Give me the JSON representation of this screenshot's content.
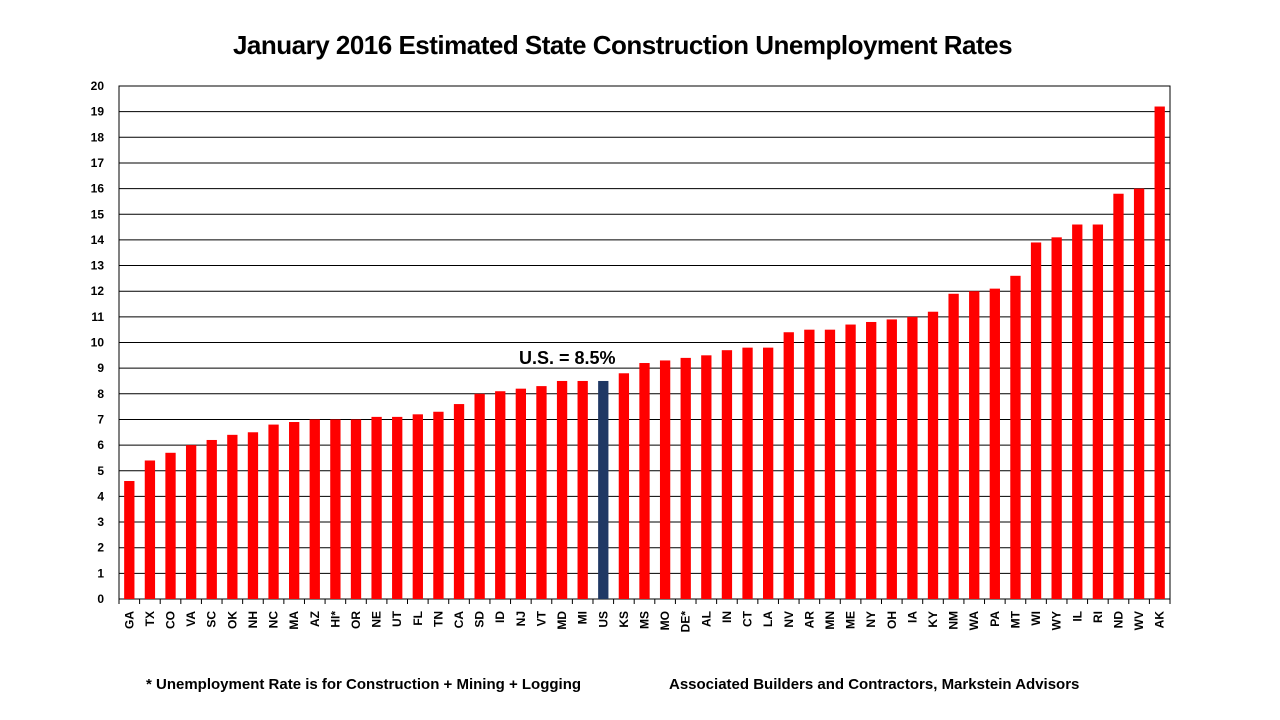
{
  "chart_data": {
    "type": "bar",
    "title": "January 2016 Estimated State Construction Unemployment Rates",
    "xlabel": "",
    "ylabel": "",
    "ylim": [
      0,
      20
    ],
    "yticks": [
      0,
      1,
      2,
      3,
      4,
      5,
      6,
      7,
      8,
      9,
      10,
      11,
      12,
      13,
      14,
      15,
      16,
      17,
      18,
      19,
      20
    ],
    "grid": true,
    "categories": [
      "GA",
      "TX",
      "CO",
      "VA",
      "SC",
      "OK",
      "NH",
      "NC",
      "MA",
      "AZ",
      "HI*",
      "OR",
      "NE",
      "UT",
      "FL",
      "TN",
      "CA",
      "SD",
      "ID",
      "NJ",
      "VT",
      "MD",
      "MI",
      "US",
      "KS",
      "MS",
      "MO",
      "DE*",
      "AL",
      "IN",
      "CT",
      "LA",
      "NV",
      "AR",
      "MN",
      "ME",
      "NY",
      "OH",
      "IA",
      "KY",
      "NM",
      "WA",
      "PA",
      "MT",
      "WI",
      "WY",
      "IL",
      "RI",
      "ND",
      "WV",
      "AK"
    ],
    "values": [
      4.6,
      5.4,
      5.7,
      6.0,
      6.2,
      6.4,
      6.5,
      6.8,
      6.9,
      7.0,
      7.0,
      7.0,
      7.1,
      7.1,
      7.2,
      7.3,
      7.6,
      8.0,
      8.1,
      8.2,
      8.3,
      8.5,
      8.5,
      8.5,
      8.8,
      9.2,
      9.3,
      9.4,
      9.5,
      9.7,
      9.8,
      9.8,
      10.4,
      10.5,
      10.5,
      10.7,
      10.8,
      10.9,
      11.0,
      11.2,
      11.9,
      12.0,
      12.1,
      12.6,
      13.9,
      14.1,
      14.6,
      14.6,
      15.8,
      16.0,
      19.2
    ],
    "highlight_category": "US",
    "colors": {
      "bar": "#ff0000",
      "highlight": "#1f3864",
      "grid": "#000000"
    },
    "annotation": "U.S. = 8.5%"
  },
  "footnotes": {
    "left": "* Unemployment Rate is for Construction + Mining + Logging",
    "right": "Associated Builders and Contractors, Markstein Advisors"
  }
}
